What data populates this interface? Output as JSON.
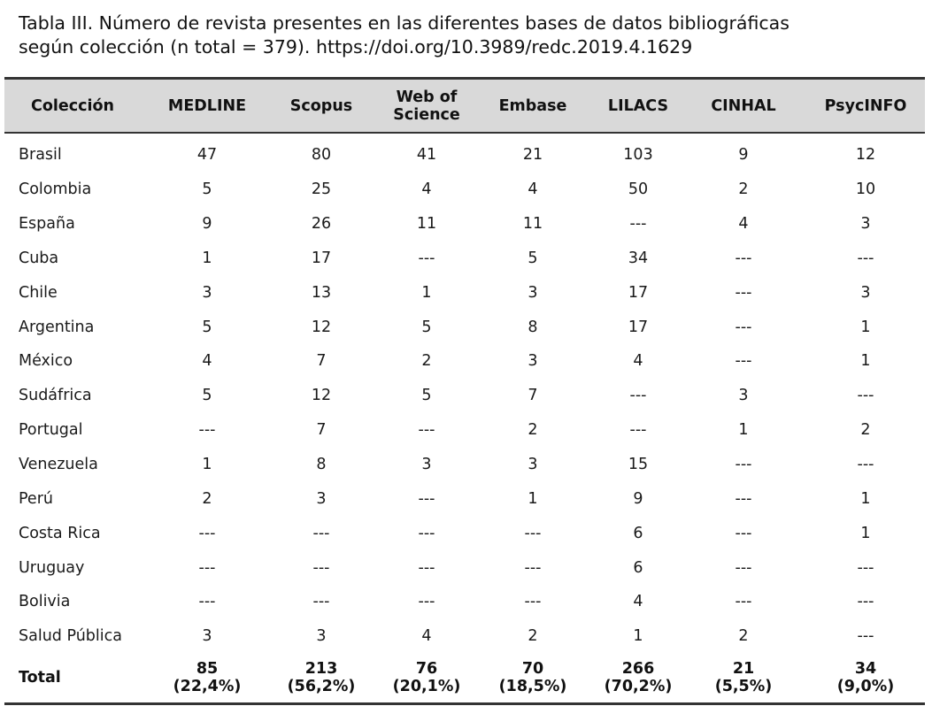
{
  "caption": {
    "line1": "Tabla III. Número de revista presentes en las diferentes bases de datos bibliográficas",
    "line2": "según colección (n total = 379). https://doi.org/10.3989/redc.2019.4.1629"
  },
  "table": {
    "headers": [
      "Colección",
      "MEDLINE",
      "Scopus",
      "Web of Science",
      "Embase",
      "LILACS",
      "CINHAL",
      "PsycINFO"
    ],
    "header_web_line1": "Web of",
    "header_web_line2": "Science",
    "rows": [
      [
        "Brasil",
        "47",
        "80",
        "41",
        "21",
        "103",
        "9",
        "12"
      ],
      [
        "Colombia",
        "5",
        "25",
        "4",
        "4",
        "50",
        "2",
        "10"
      ],
      [
        "España",
        "9",
        "26",
        "11",
        "11",
        "---",
        "4",
        "3"
      ],
      [
        "Cuba",
        "1",
        "17",
        "---",
        "5",
        "34",
        "---",
        "---"
      ],
      [
        "Chile",
        "3",
        "13",
        "1",
        "3",
        "17",
        "---",
        "3"
      ],
      [
        "Argentina",
        "5",
        "12",
        "5",
        "8",
        "17",
        "---",
        "1"
      ],
      [
        "México",
        "4",
        "7",
        "2",
        "3",
        "4",
        "---",
        "1"
      ],
      [
        "Sudáfrica",
        "5",
        "12",
        "5",
        "7",
        "---",
        "3",
        "---"
      ],
      [
        "Portugal",
        "---",
        "7",
        "---",
        "2",
        "---",
        "1",
        "2"
      ],
      [
        "Venezuela",
        "1",
        "8",
        "3",
        "3",
        "15",
        "---",
        "---"
      ],
      [
        "Perú",
        "2",
        "3",
        "---",
        "1",
        "9",
        "---",
        "1"
      ],
      [
        "Costa Rica",
        "---",
        "---",
        "---",
        "---",
        "6",
        "---",
        "1"
      ],
      [
        "Uruguay",
        "---",
        "---",
        "---",
        "---",
        "6",
        "---",
        "---"
      ],
      [
        "Bolivia",
        "---",
        "---",
        "---",
        "---",
        "4",
        "---",
        "---"
      ],
      [
        "Salud Pública",
        "3",
        "3",
        "4",
        "2",
        "1",
        "2",
        "---"
      ]
    ],
    "total": {
      "label": "Total",
      "values": [
        "85",
        "213",
        "76",
        "70",
        "266",
        "21",
        "34"
      ],
      "percents": [
        "(22,4%)",
        "(56,2%)",
        "(20,1%)",
        "(18,5%)",
        "(70,2%)",
        "(5,5%)",
        "(9,0%)"
      ]
    }
  }
}
